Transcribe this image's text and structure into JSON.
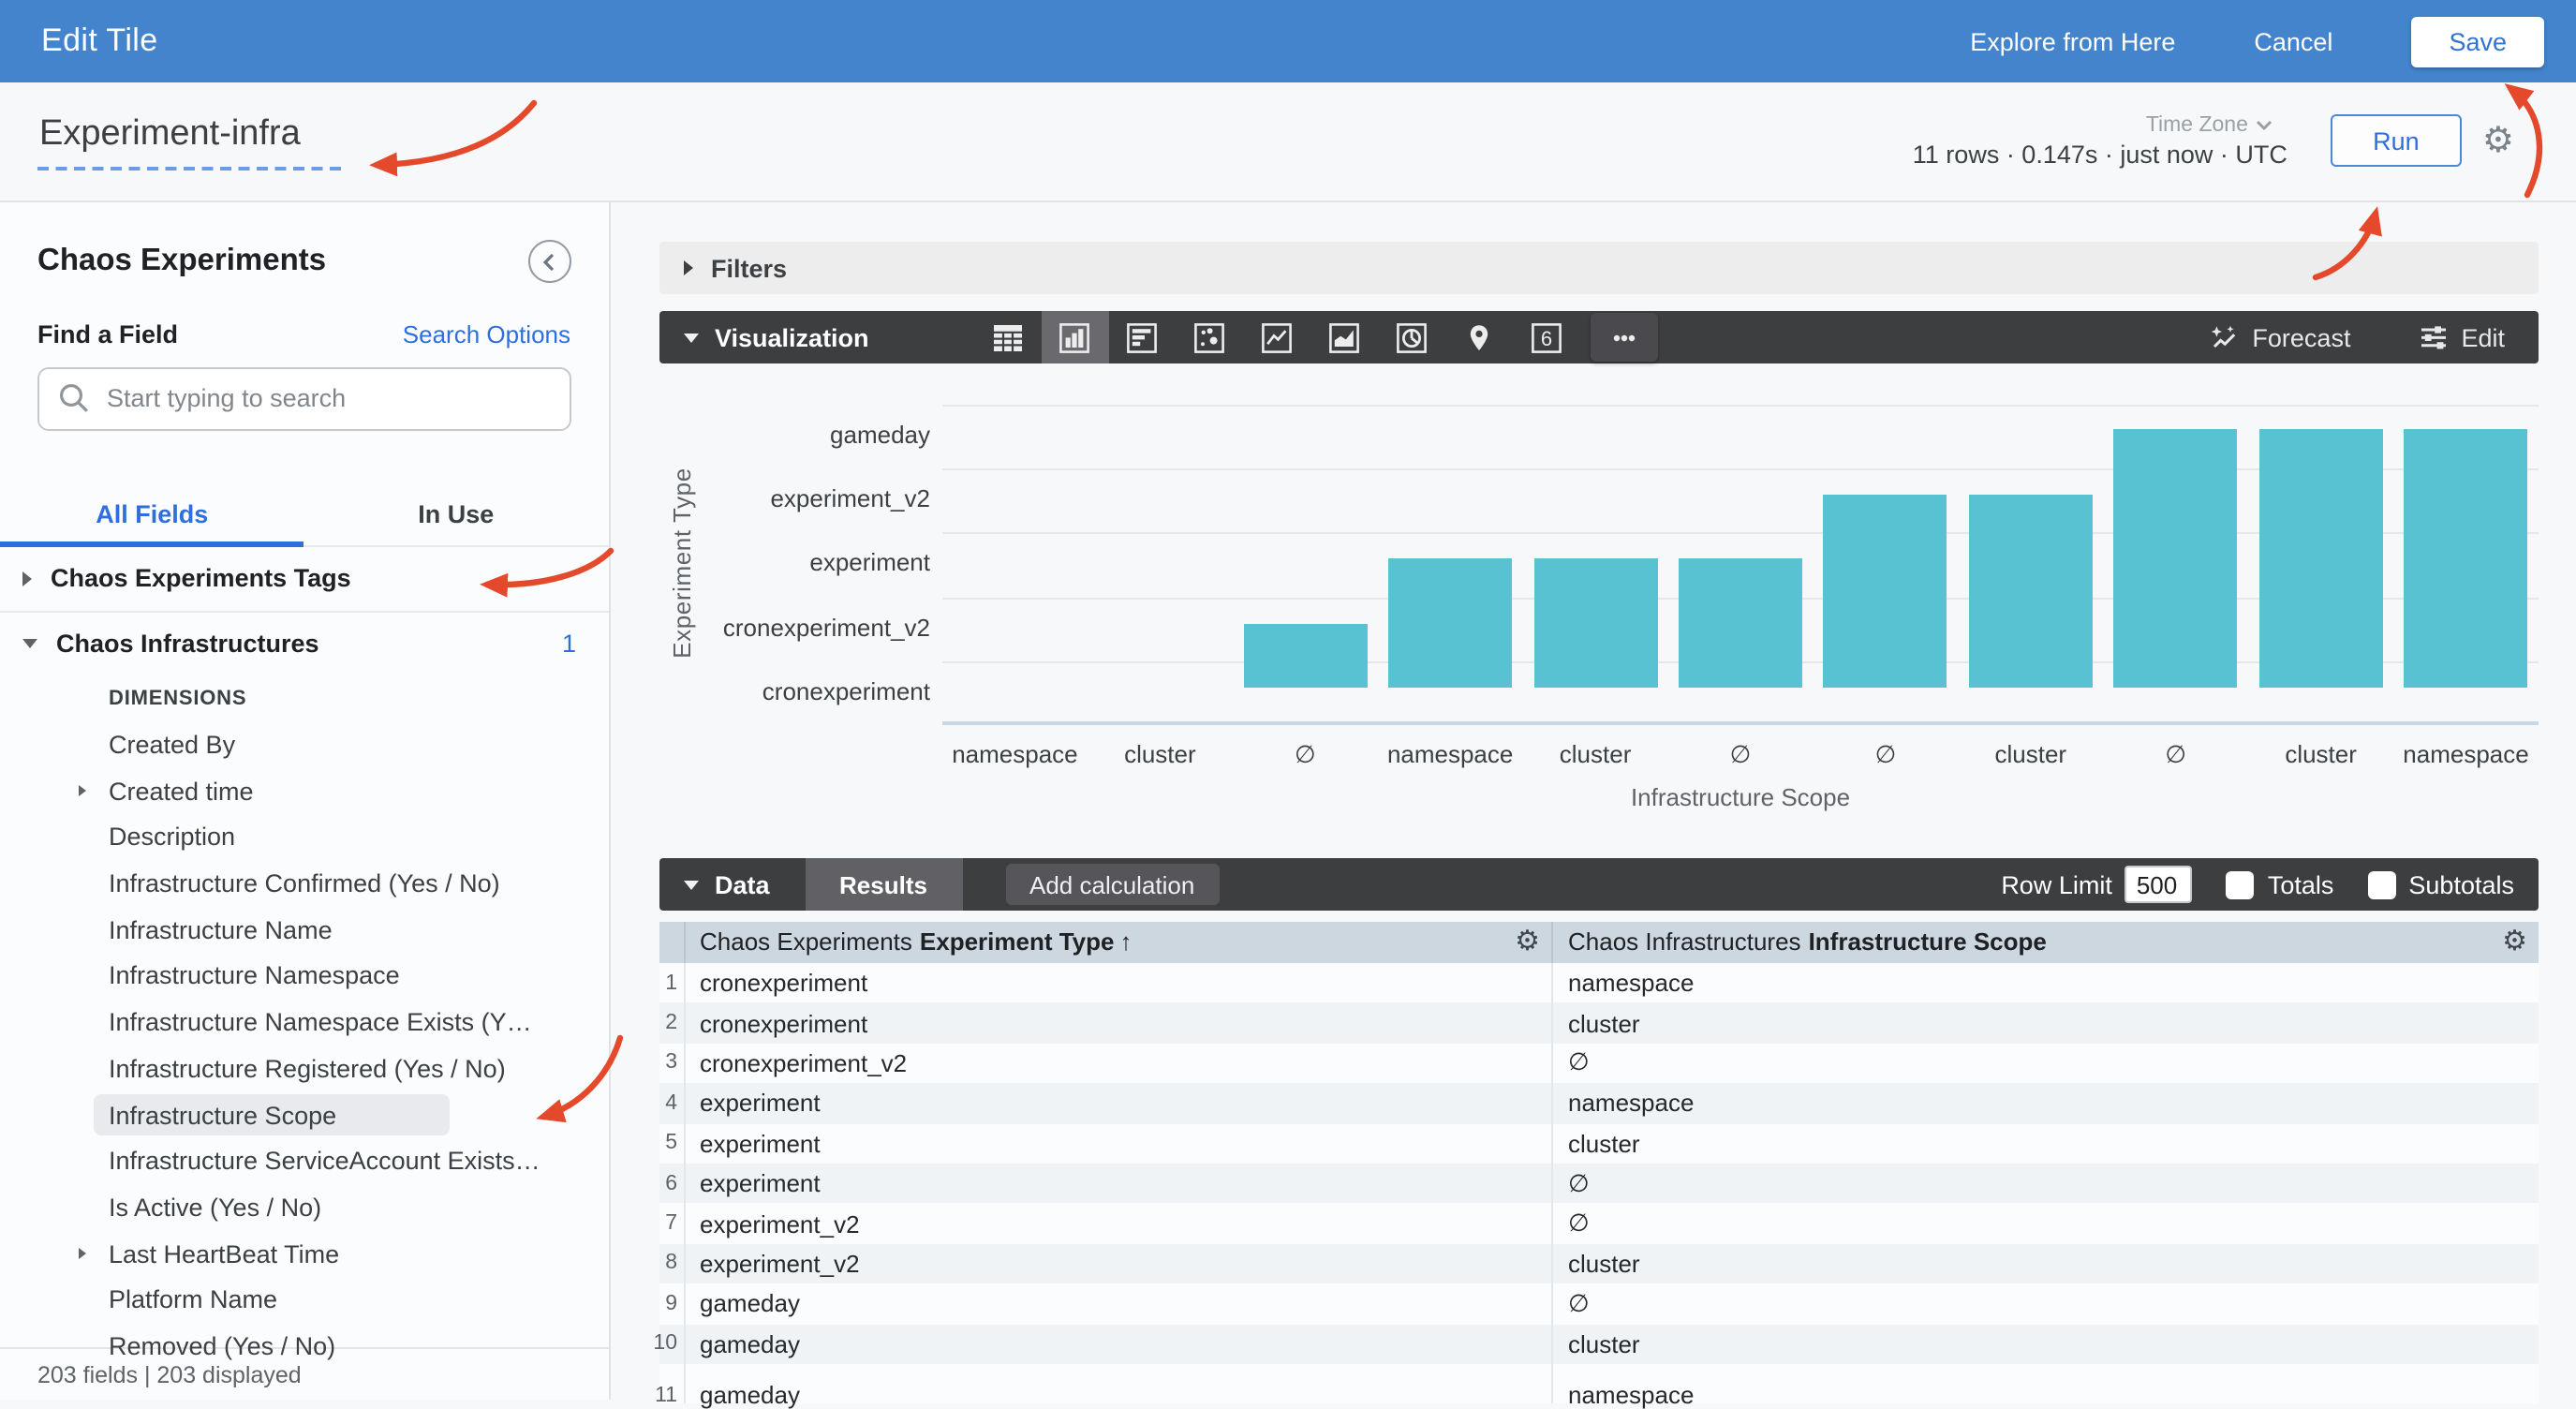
{
  "header": {
    "title": "Edit Tile",
    "explore_label": "Explore from Here",
    "cancel_label": "Cancel",
    "save_label": "Save"
  },
  "subheader": {
    "tile_title": "Experiment-infra",
    "stats": "11 rows · 0.147s · just now · UTC",
    "timezone_label": "Time Zone",
    "run_label": "Run"
  },
  "sidebar": {
    "view_title": "Chaos Experiments",
    "find_label": "Find a Field",
    "search_options_label": "Search Options",
    "search_placeholder": "Start typing to search",
    "tabs": {
      "all": "All Fields",
      "in_use": "In Use"
    },
    "tree": [
      {
        "kind": "group",
        "label": "Chaos Experiments Tags",
        "expanded": false
      },
      {
        "kind": "divider"
      },
      {
        "kind": "group",
        "label": "Chaos Infrastructures",
        "expanded": true,
        "badge": "1"
      },
      {
        "kind": "section",
        "label": "DIMENSIONS"
      },
      {
        "kind": "field",
        "label": "Created By"
      },
      {
        "kind": "field",
        "label": "Created time",
        "expandable": true
      },
      {
        "kind": "field",
        "label": "Description"
      },
      {
        "kind": "field",
        "label": "Infrastructure Confirmed (Yes / No)"
      },
      {
        "kind": "field",
        "label": "Infrastructure Name"
      },
      {
        "kind": "field",
        "label": "Infrastructure Namespace"
      },
      {
        "kind": "field",
        "label": "Infrastructure Namespace Exists (Y…"
      },
      {
        "kind": "field",
        "label": "Infrastructure Registered (Yes / No)"
      },
      {
        "kind": "field",
        "label": "Infrastructure Scope",
        "selected": true
      },
      {
        "kind": "field",
        "label": "Infrastructure ServiceAccount Exists…"
      },
      {
        "kind": "field",
        "label": "Is Active (Yes / No)"
      },
      {
        "kind": "field",
        "label": "Last HeartBeat Time",
        "expandable": true
      },
      {
        "kind": "field",
        "label": "Platform Name"
      },
      {
        "kind": "field",
        "label": "Removed (Yes / No)",
        "partial": true
      }
    ],
    "footer": "203 fields | 203 displayed"
  },
  "filters": {
    "label": "Filters"
  },
  "visualization": {
    "label": "Visualization",
    "icons": [
      "table-chart",
      "column-chart",
      "bar-chart",
      "scatter-chart",
      "line-chart",
      "area-chart",
      "pie-chart",
      "map-chart",
      "single-value",
      "more-options"
    ],
    "selected_icon": "column-chart",
    "single_value_glyph": "6",
    "forecast_label": "Forecast",
    "edit_label": "Edit"
  },
  "chart_data": {
    "type": "bar",
    "orientation": "vertical-with-categorical-y",
    "title": "",
    "xlabel": "Infrastructure Scope",
    "ylabel": "Experiment Type",
    "y_categories": [
      "cronexperiment",
      "cronexperiment_v2",
      "experiment",
      "experiment_v2",
      "gameday"
    ],
    "x": [
      "namespace",
      "cluster",
      "∅",
      "namespace",
      "cluster",
      "∅",
      "∅",
      "cluster",
      "∅",
      "cluster",
      "namespace"
    ],
    "y": [
      "cronexperiment",
      "cronexperiment",
      "cronexperiment_v2",
      "experiment",
      "experiment",
      "experiment",
      "experiment_v2",
      "experiment_v2",
      "gameday",
      "gameday",
      "gameday"
    ],
    "grid": true,
    "legend": "none",
    "bar_color": "#58c1d2"
  },
  "data_section": {
    "label": "Data",
    "results_label": "Results",
    "add_calculation_label": "Add calculation",
    "row_limit_label": "Row Limit",
    "row_limit_value": "500",
    "totals_label": "Totals",
    "subtotals_label": "Subtotals"
  },
  "table": {
    "columns": [
      {
        "prefix": "Chaos Experiments",
        "name": "Experiment Type",
        "sort": "↑"
      },
      {
        "prefix": "Chaos Infrastructures",
        "name": "Infrastructure Scope",
        "sort": ""
      }
    ],
    "rows": [
      [
        "1",
        "cronexperiment",
        "namespace"
      ],
      [
        "2",
        "cronexperiment",
        "cluster"
      ],
      [
        "3",
        "cronexperiment_v2",
        "∅"
      ],
      [
        "4",
        "experiment",
        "namespace"
      ],
      [
        "5",
        "experiment",
        "cluster"
      ],
      [
        "6",
        "experiment",
        "∅"
      ],
      [
        "7",
        "experiment_v2",
        "∅"
      ],
      [
        "8",
        "experiment_v2",
        "cluster"
      ],
      [
        "9",
        "gameday",
        "∅"
      ],
      [
        "10",
        "gameday",
        "cluster"
      ],
      [
        "11",
        "gameday",
        "namespace"
      ]
    ],
    "partial_last_row": true
  },
  "colors": {
    "accent_blue": "#2f6fdd",
    "header_blue": "#4484cd",
    "bar_teal": "#58c1d2",
    "dark_toolbar": "#3d3e40",
    "table_header_bg": "#ccd7e0",
    "row_stripe": "#f0f3f5",
    "selected_field_bg": "#e8eaed",
    "annotation_red": "#e5492c"
  }
}
